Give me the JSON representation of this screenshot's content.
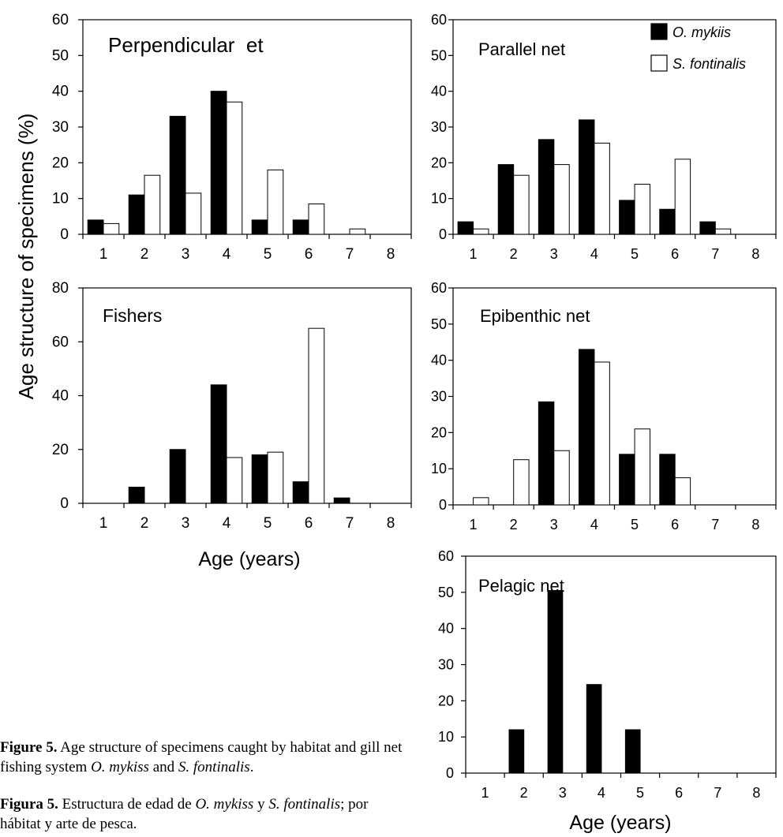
{
  "figure": {
    "ylabel": "Age structure of specimens (%)",
    "xlabel_left": "Age (years)",
    "xlabel_right": "Age (years)",
    "colors": {
      "omykiss": "#000000",
      "sfontinalis": "#ffffff",
      "axis": "#000000"
    }
  },
  "legend": [
    {
      "name": "O. mykiis",
      "color": "#000000"
    },
    {
      "name": "S. fontinalis",
      "color": "#ffffff"
    }
  ],
  "captions": {
    "en_label": "Figure 5.",
    "en_text_1": " Age structure of specimens caught by habitat and gill net fishing system ",
    "en_species_1": "O. mykiss",
    "en_text_2": " and ",
    "en_species_2": "S. fontinalis",
    "en_text_3": ".",
    "es_label": "Figura 5.",
    "es_text_1": " Estructura de edad de ",
    "es_species_1": "O. mykiss",
    "es_text_2": " y ",
    "es_species_2": "S. fontinalis",
    "es_text_3": "; por hábitat y arte de pesca."
  },
  "chart_data": [
    {
      "type": "bar",
      "title": "Perpendicular  et",
      "categories": [
        "1",
        "2",
        "3",
        "4",
        "5",
        "6",
        "7",
        "8"
      ],
      "ylim": [
        0,
        60
      ],
      "yticks": [
        0,
        10,
        20,
        30,
        40,
        50,
        60
      ],
      "series": [
        {
          "name": "O. mykiis",
          "values": [
            4,
            11,
            33,
            40,
            4,
            4,
            0,
            0
          ]
        },
        {
          "name": "S. fontinalis",
          "values": [
            3,
            16.5,
            11.5,
            37,
            18,
            8.5,
            1.5,
            0
          ]
        }
      ]
    },
    {
      "type": "bar",
      "title": "Parallel net",
      "categories": [
        "1",
        "2",
        "3",
        "4",
        "5",
        "6",
        "7",
        "8"
      ],
      "ylim": [
        0,
        60
      ],
      "yticks": [
        0,
        10,
        20,
        30,
        40,
        50,
        60
      ],
      "legend": "top-right",
      "series": [
        {
          "name": "O. mykiis",
          "values": [
            3.5,
            19.5,
            26.5,
            32,
            9.5,
            7,
            3.5,
            0
          ]
        },
        {
          "name": "S. fontinalis",
          "values": [
            1.5,
            16.5,
            19.5,
            25.5,
            14,
            21,
            1.5,
            0
          ]
        }
      ]
    },
    {
      "type": "bar",
      "title": "Fishers",
      "categories": [
        "1",
        "2",
        "3",
        "4",
        "5",
        "6",
        "7",
        "8"
      ],
      "ylim": [
        0,
        80
      ],
      "yticks": [
        0,
        20,
        40,
        60,
        80
      ],
      "series": [
        {
          "name": "O. mykiis",
          "values": [
            0,
            6,
            20,
            44,
            18,
            8,
            2,
            0
          ]
        },
        {
          "name": "S. fontinalis",
          "values": [
            0,
            0,
            0,
            17,
            19,
            65,
            0,
            0
          ]
        }
      ]
    },
    {
      "type": "bar",
      "title": "Epibenthic net",
      "categories": [
        "1",
        "2",
        "3",
        "4",
        "5",
        "6",
        "7",
        "8"
      ],
      "ylim": [
        0,
        60
      ],
      "yticks": [
        0,
        10,
        20,
        30,
        40,
        50,
        60
      ],
      "series": [
        {
          "name": "O. mykiis",
          "values": [
            0,
            0,
            28.5,
            43,
            14,
            14,
            0,
            0
          ]
        },
        {
          "name": "S. fontinalis",
          "values": [
            2,
            12.5,
            15,
            39.5,
            21,
            7.5,
            0,
            0
          ]
        }
      ]
    },
    {
      "type": "bar",
      "title": "Pelagic net",
      "categories": [
        "1",
        "2",
        "3",
        "4",
        "5",
        "6",
        "7",
        "8"
      ],
      "ylim": [
        0,
        60
      ],
      "yticks": [
        0,
        10,
        20,
        30,
        40,
        50,
        60
      ],
      "series": [
        {
          "name": "O. mykiis",
          "values": [
            0,
            12,
            50.5,
            24.5,
            12,
            0,
            0,
            0
          ]
        },
        {
          "name": "S. fontinalis",
          "values": [
            0,
            0,
            0,
            0,
            0,
            0,
            0,
            0
          ]
        }
      ]
    }
  ]
}
